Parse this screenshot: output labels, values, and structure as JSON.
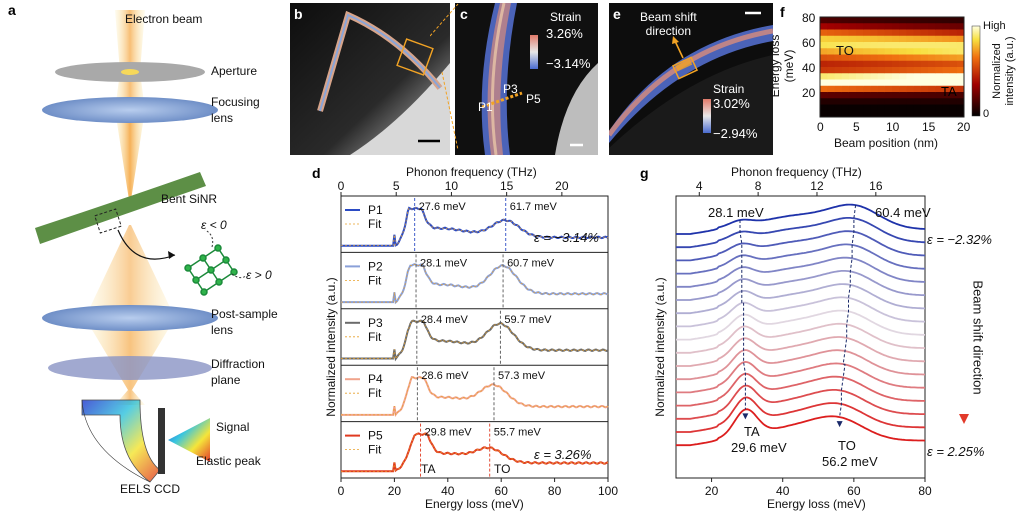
{
  "panels": {
    "a": "a",
    "b": "b",
    "c": "c",
    "d": "d",
    "e": "e",
    "f": "f",
    "g": "g"
  },
  "schematic": {
    "electron_beam": "Electron beam",
    "aperture": "Aperture",
    "focusing_lens": "Focusing\nlens",
    "bent_sinr": "Bent SiNR",
    "eps_neg": "ε < 0",
    "eps_pos": "ε > 0",
    "post_sample_lens": "Post-sample\nlens",
    "diffraction_plane": "Diffraction\nplane",
    "signal": "Signal",
    "elastic_peak": "Elastic peak",
    "eels_ccd": "EELS CCD"
  },
  "panel_c": {
    "strain_title": "Strain",
    "max": "3.26%",
    "min": "−3.14%",
    "points": [
      "P1",
      "P3",
      "P5"
    ]
  },
  "panel_e": {
    "beam_shift": "Beam shift\ndirection",
    "strain_title": "Strain",
    "max": "3.02%",
    "min": "−2.94%"
  },
  "panel_f": {
    "xlabel": "Beam position (nm)",
    "ylabel": "Energy loss\n(meV)",
    "xticks": [
      "0",
      "5",
      "10",
      "15",
      "20"
    ],
    "yticks": [
      "20",
      "40",
      "60",
      "80"
    ],
    "to": "TO",
    "ta": "TA",
    "cb_high": "High",
    "cb_low": "0",
    "cb_label": "Normalized\nintensity (a.u.)"
  },
  "panel_d": {
    "top_label": "Phonon frequency (THz)",
    "xlabel": "Energy loss (meV)",
    "ylabel": "Normalized intensity (a.u.)",
    "xticks": [
      "0",
      "20",
      "40",
      "60",
      "80",
      "100"
    ],
    "top_ticks": [
      "0",
      "5",
      "10",
      "15",
      "20"
    ],
    "fit": "Fit",
    "ta": "TA",
    "to": "TO",
    "eps_top": "ε = −3.14%",
    "eps_bottom": "ε = 3.26%"
  },
  "panel_g": {
    "top_label": "Phonon frequency (THz)",
    "xlabel": "Energy loss (meV)",
    "ylabel": "Normalized intensity (a.u.)",
    "xticks": [
      "20",
      "40",
      "60",
      "80"
    ],
    "top_ticks": [
      "4",
      "8",
      "12",
      "16"
    ],
    "peak_top_left": "28.1 meV",
    "peak_top_right": "60.4 meV",
    "ta": "TA",
    "to": "TO",
    "peak_bottom_left": "29.6 meV",
    "peak_bottom_right": "56.2 meV",
    "eps_top": "ε = −2.32%",
    "eps_bottom": "ε = 2.25%",
    "shift": "Beam shift direction"
  },
  "chart_data": [
    {
      "type": "line",
      "title": "d",
      "xlabel": "Energy loss (meV)",
      "ylabel": "Normalized intensity (a.u.)",
      "xlim": [
        0,
        100
      ],
      "series": [
        {
          "name": "P1",
          "color": "#2b4bc4",
          "ta": 27.6,
          "to": 61.7,
          "ta_label": "27.6 meV",
          "to_label": "61.7 meV",
          "to_amp": 0.45
        },
        {
          "name": "P2",
          "color": "#8aa0d8",
          "ta": 28.1,
          "to": 60.7,
          "ta_label": "28.1 meV",
          "to_label": "60.7 meV",
          "to_amp": 0.75
        },
        {
          "name": "P3",
          "color": "#6b6b6b",
          "ta": 28.4,
          "to": 59.7,
          "ta_label": "28.4 meV",
          "to_label": "59.7 meV",
          "to_amp": 0.7
        },
        {
          "name": "P4",
          "color": "#f0a48c",
          "ta": 28.6,
          "to": 57.3,
          "ta_label": "28.6 meV",
          "to_label": "57.3 meV",
          "to_amp": 0.55
        },
        {
          "name": "P5",
          "color": "#e03a20",
          "ta": 29.8,
          "to": 55.7,
          "ta_label": "29.8 meV",
          "to_label": "55.7 meV",
          "to_amp": 0.35
        }
      ]
    },
    {
      "type": "line",
      "title": "g",
      "xlabel": "Energy loss (meV)",
      "ylabel": "Normalized intensity (a.u.)",
      "xlim": [
        10,
        80
      ],
      "strain_range": [
        -2.32,
        2.25
      ],
      "n_curves": 17,
      "ta_range": [
        28.1,
        29.6
      ],
      "to_range": [
        60.4,
        56.2
      ]
    },
    {
      "type": "heatmap",
      "title": "f",
      "xlabel": "Beam position (nm)",
      "ylabel": "Energy loss (meV)",
      "xlim": [
        0,
        20
      ],
      "ylim": [
        0,
        80
      ]
    }
  ],
  "colors": {
    "beam": "#f6d85a",
    "lens": "#7fa6d8",
    "aperture": "#9a9a9a",
    "sinr": "#4f8a3a",
    "accent": "#e8a02a"
  }
}
